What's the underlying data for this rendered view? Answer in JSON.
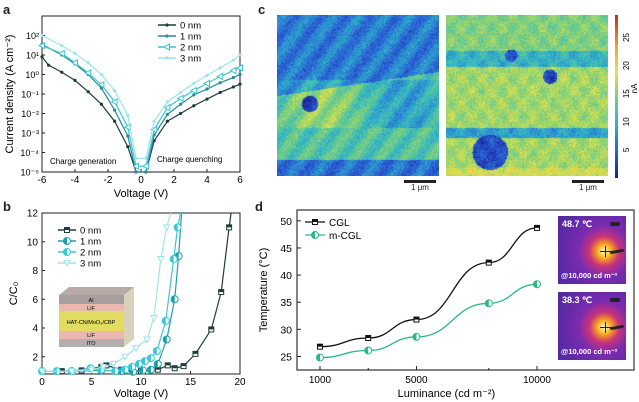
{
  "figure": {
    "panel_labels": [
      "a",
      "b",
      "c",
      "d"
    ]
  },
  "chart_data": [
    {
      "id": "a",
      "type": "line",
      "xlabel": "Voltage (V)",
      "ylabel": "Current density (A cm⁻²)",
      "xlim": [
        -6,
        6
      ],
      "ylim": [
        1e-05,
        1000.0
      ],
      "yscale": "log",
      "xticks": [
        -6,
        -4,
        -2,
        0,
        2,
        4,
        6
      ],
      "yticks": [
        "10⁻⁵",
        "10⁻⁴",
        "10⁻³",
        "10⁻²",
        "10⁻¹",
        "10⁰",
        "10¹",
        "10²"
      ],
      "ytick_values": [
        1e-05,
        0.0001,
        0.001,
        0.01,
        0.1,
        1,
        10,
        100
      ],
      "annotations": [
        "Charge generation",
        "Charge quenching"
      ],
      "legend_position": "top-right",
      "series": [
        {
          "name": "0 nm",
          "color": "#1f3d3a",
          "x": [
            -6,
            -5.6,
            -4.8,
            -4.0,
            -3.2,
            -2.4,
            -1.6,
            -0.8,
            -0.3,
            0.3,
            0.8,
            1.6,
            2.4,
            3.2,
            4.0,
            4.8,
            5.6,
            6.0
          ],
          "y": [
            8,
            3,
            1.3,
            0.5,
            0.13,
            0.03,
            0.004,
            0.0002,
            1e-05,
            1e-05,
            0.0004,
            0.004,
            0.01,
            0.025,
            0.055,
            0.12,
            0.23,
            0.32
          ]
        },
        {
          "name": "1 nm",
          "color": "#2a8a96",
          "x": [
            -6,
            -4.8,
            -4.0,
            -3.2,
            -2.4,
            -1.6,
            -0.8,
            -0.3,
            0.3,
            0.8,
            1.6,
            2.4,
            3.2,
            4.0,
            4.8,
            5.6,
            6.0
          ],
          "y": [
            35,
            10,
            3.5,
            1.0,
            0.2,
            0.015,
            0.0007,
            1e-05,
            1e-05,
            0.0008,
            0.009,
            0.03,
            0.09,
            0.18,
            0.38,
            0.7,
            1.0
          ]
        },
        {
          "name": "2 nm",
          "color": "#3cc6d6",
          "x": [
            -6,
            -4.8,
            -4.0,
            -3.2,
            -2.4,
            -1.6,
            -0.8,
            -0.3,
            0.3,
            0.8,
            1.6,
            2.4,
            3.2,
            4.0,
            4.8,
            5.6,
            6.0
          ],
          "y": [
            30,
            12,
            4,
            1.2,
            0.3,
            0.04,
            0.002,
            2e-05,
            2e-05,
            0.0015,
            0.02,
            0.06,
            0.15,
            0.35,
            0.8,
            1.6,
            2.2
          ]
        },
        {
          "name": "3 nm",
          "color": "#9fe3ea",
          "x": [
            -6,
            -4.8,
            -4.0,
            -3.2,
            -2.4,
            -1.6,
            -0.8,
            -0.3,
            0.3,
            0.8,
            1.6,
            2.4,
            3.2,
            4.0,
            4.8,
            5.6,
            6.0
          ],
          "y": [
            100,
            30,
            12,
            4,
            1.0,
            0.15,
            0.008,
            5e-05,
            5e-05,
            0.004,
            0.04,
            0.12,
            0.35,
            0.9,
            2.2,
            5.5,
            10
          ]
        }
      ]
    },
    {
      "id": "b",
      "type": "line",
      "xlabel": "Voltage (V)",
      "ylabel": "C/C₀",
      "xlim": [
        0,
        20
      ],
      "ylim": [
        0.8,
        12
      ],
      "xticks": [
        0,
        5,
        10,
        15,
        20
      ],
      "yticks": [
        2,
        4,
        6,
        8,
        10,
        12
      ],
      "legend_position": "top-left",
      "inset_layers": [
        "Al",
        "LiF",
        "HAT-CN/MoO₃/CBP",
        "LiF",
        "ITO"
      ],
      "series": [
        {
          "name": "0 nm",
          "color": "#1f3d3a",
          "x": [
            0,
            2,
            4,
            6,
            6.5,
            8,
            10,
            11.7,
            12.7,
            13.4,
            14.3,
            15.5,
            17.1,
            18.1,
            18.9,
            19.1
          ],
          "y": [
            1.0,
            1.0,
            1.05,
            1.3,
            1.4,
            1.1,
            1.0,
            1.1,
            1.4,
            1.2,
            1.35,
            2.2,
            3.9,
            6.5,
            11,
            12
          ]
        },
        {
          "name": "1 nm",
          "color": "#1aa0a8",
          "x": [
            0,
            3,
            6,
            8,
            9.2,
            10.2,
            11.0,
            11.7,
            12.6,
            13.4,
            13.8,
            14.1
          ],
          "y": [
            1.0,
            1.0,
            1.05,
            1.0,
            0.95,
            1.05,
            1.1,
            1.5,
            3.2,
            6.0,
            9,
            12
          ]
        },
        {
          "name": "2 nm",
          "color": "#3cc6d6",
          "x": [
            0,
            1.5,
            3,
            4.9,
            6,
            7.4,
            8.4,
            9.1,
            9.8,
            10.4,
            11,
            11.6,
            12.5,
            13.3,
            13.7,
            14.0
          ],
          "y": [
            1.0,
            1.0,
            1.0,
            1.2,
            1.1,
            1.0,
            1.1,
            1.3,
            1.5,
            1.7,
            1.9,
            2.4,
            4.5,
            8.8,
            11,
            12
          ]
        },
        {
          "name": "3 nm",
          "color": "#9fe3ea",
          "x": [
            0,
            3,
            5,
            6.2,
            7.2,
            8.4,
            9.5,
            10.6,
            11.3,
            12.0,
            12.6,
            13.0
          ],
          "y": [
            1.0,
            1.0,
            1.1,
            1.3,
            1.5,
            2.0,
            2.6,
            3.2,
            4.7,
            8.8,
            11,
            12
          ]
        }
      ]
    },
    {
      "id": "c",
      "type": "heatmap",
      "colorbar_label": "nA",
      "colorbar_ticks": [
        5,
        10,
        15,
        20,
        25
      ],
      "colorbar_range": [
        0,
        29
      ],
      "scalebars": [
        "1 μm",
        "1 μm"
      ],
      "maps": [
        "left current map",
        "right current map"
      ]
    },
    {
      "id": "d",
      "type": "line",
      "xlabel": "Luminance (cd m⁻²)",
      "ylabel": "Temperature (°C)",
      "xlim": [
        0,
        14000
      ],
      "ylim": [
        22.5,
        52
      ],
      "xticks": [
        1000,
        5000,
        10000
      ],
      "yticks": [
        25,
        30,
        35,
        40,
        45,
        50
      ],
      "legend_position": "top-left",
      "series": [
        {
          "name": "CGL",
          "color": "#111111",
          "x": [
            1000,
            3000,
            5000,
            8000,
            10000
          ],
          "y": [
            26.8,
            28.4,
            31.8,
            42.3,
            48.7
          ]
        },
        {
          "name": "m-CGL",
          "color": "#2bb98a",
          "x": [
            1000,
            3000,
            5000,
            8000,
            10000
          ],
          "y": [
            24.8,
            26.1,
            28.6,
            34.8,
            38.3
          ]
        }
      ],
      "thermal_images": [
        {
          "temperature": "48.7 ℃",
          "caption": "@10,000 cd m⁻²"
        },
        {
          "temperature": "38.3 ℃",
          "caption": "@10,000 cd m⁻²"
        }
      ]
    }
  ]
}
